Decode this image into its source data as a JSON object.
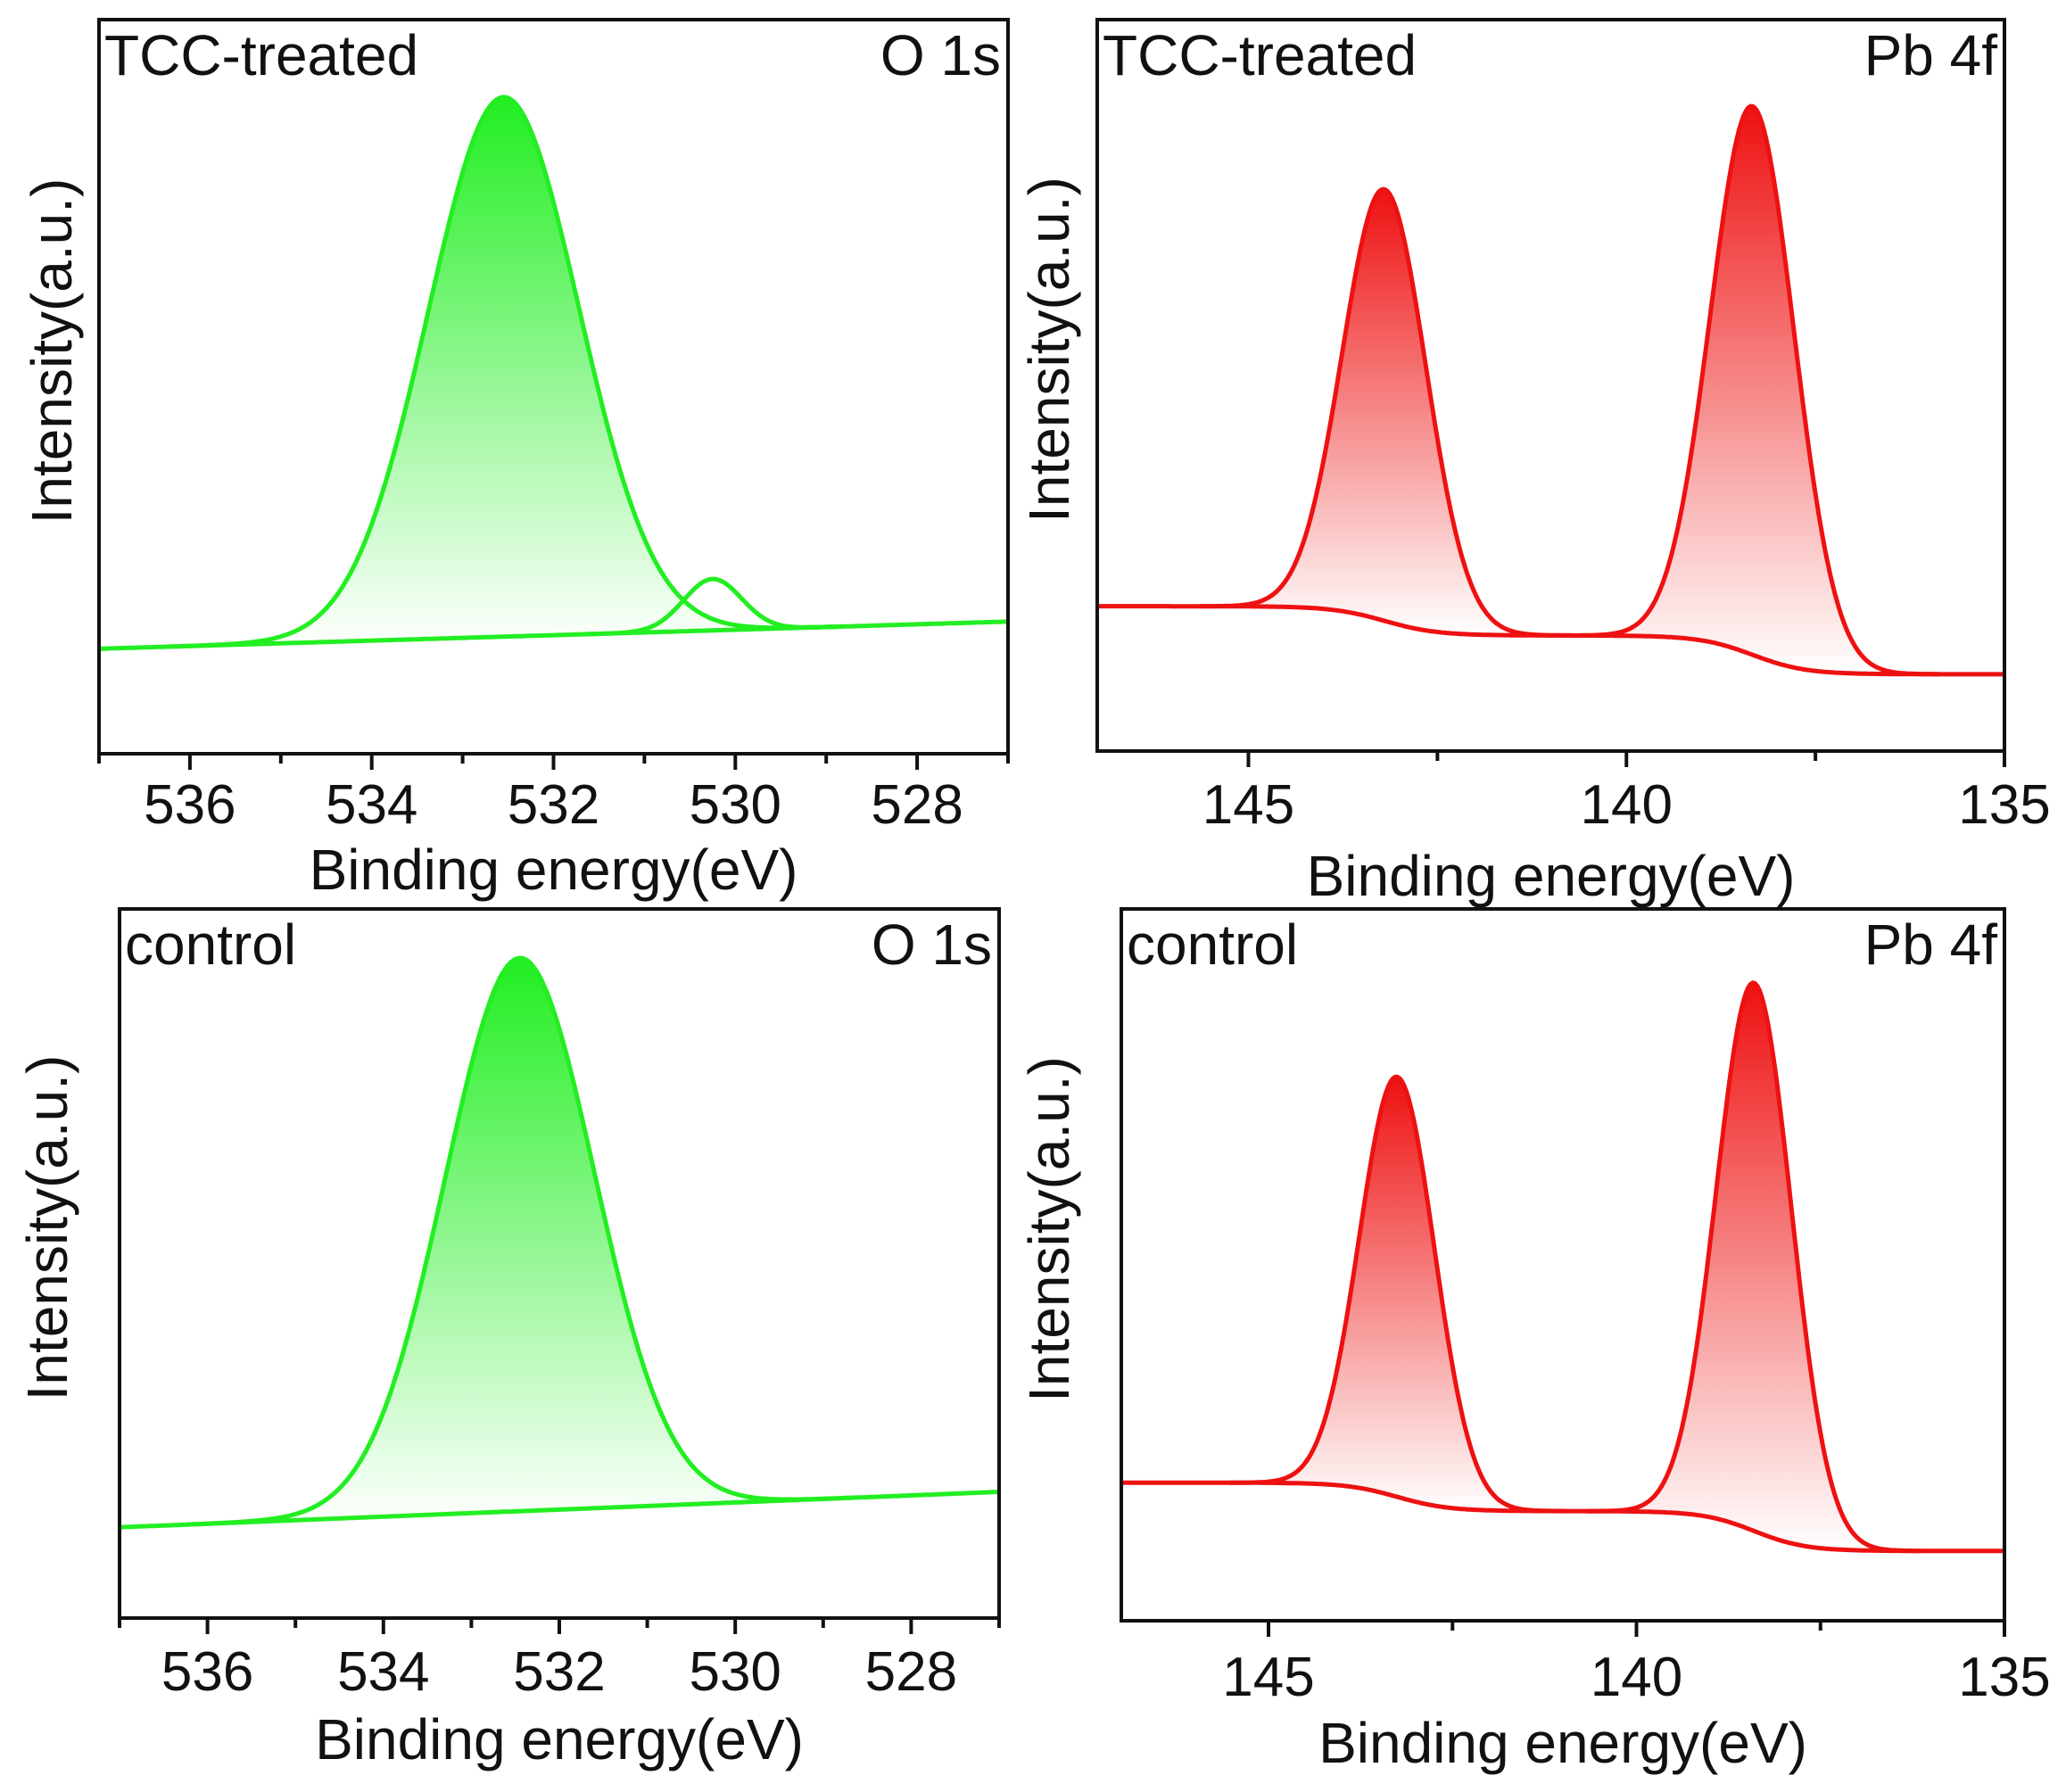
{
  "chart_data": [
    {
      "type": "line",
      "id": "o1s-treated",
      "sample_label": "TCC-treated",
      "element_label": "O 1s",
      "xlabel": "Binding energy(eV)",
      "ylabel": "Intensity(a.u.)",
      "xlim": [
        537,
        527
      ],
      "ylim": [
        0,
        1
      ],
      "xticks": [
        536,
        534,
        532,
        530,
        528
      ],
      "minor_xticks": [
        537,
        535,
        533,
        531,
        529,
        527
      ],
      "color": "#22ee22",
      "background": {
        "type": "linear",
        "start": [
          537,
          0.143
        ],
        "end": [
          527,
          0.18
        ]
      },
      "peaks": [
        {
          "center": 532.55,
          "height": 0.735,
          "fwhm": 1.95,
          "filled": true
        },
        {
          "center": 530.25,
          "height": 0.07,
          "fwhm": 0.75,
          "filled": false
        }
      ]
    },
    {
      "type": "line",
      "id": "pb4f-treated",
      "sample_label": "TCC-treated",
      "element_label": "Pb 4f",
      "xlabel": "Binding energy(eV)",
      "ylabel": "Intensity(a.u.)",
      "xlim": [
        147,
        135
      ],
      "ylim": [
        0,
        1
      ],
      "xticks": [
        145,
        140,
        135
      ],
      "minor_xticks": [
        147.5,
        142.5,
        137.5
      ],
      "color": "#ee1111",
      "background": {
        "type": "shirley",
        "left": 0.198,
        "middle": 0.158,
        "right": 0.105
      },
      "peaks": [
        {
          "center": 143.2,
          "height": 0.59,
          "fwhm": 1.3,
          "filled": true
        },
        {
          "center": 138.33,
          "height": 0.75,
          "fwhm": 1.3,
          "filled": true
        }
      ]
    },
    {
      "type": "line",
      "id": "o1s-control",
      "sample_label": "control",
      "element_label": "O 1s",
      "xlabel": "Binding energy(eV)",
      "ylabel": "Intensity(a.u.)",
      "xlim": [
        537,
        527
      ],
      "ylim": [
        0,
        1
      ],
      "xticks": [
        536,
        534,
        532,
        530,
        528
      ],
      "minor_xticks": [
        537,
        535,
        533,
        531,
        529,
        527
      ],
      "color": "#22ee22",
      "background": {
        "type": "linear",
        "start": [
          537,
          0.128
        ],
        "end": [
          527,
          0.178
        ]
      },
      "peaks": [
        {
          "center": 532.45,
          "height": 0.78,
          "fwhm": 2.0,
          "filled": true
        }
      ]
    },
    {
      "type": "line",
      "id": "pb4f-control",
      "sample_label": "control",
      "element_label": "Pb 4f",
      "xlabel": "Binding energy(eV)",
      "ylabel": "Intensity(a.u.)",
      "xlim": [
        147,
        135
      ],
      "ylim": [
        0,
        1
      ],
      "xticks": [
        145,
        140,
        135
      ],
      "minor_xticks": [
        147.5,
        142.5,
        137.5
      ],
      "color": "#ee1111",
      "background": {
        "type": "shirley",
        "left": 0.194,
        "middle": 0.154,
        "right": 0.098
      },
      "peaks": [
        {
          "center": 143.25,
          "height": 0.59,
          "fwhm": 1.2,
          "filled": true
        },
        {
          "center": 138.4,
          "height": 0.77,
          "fwhm": 1.2,
          "filled": true
        }
      ]
    }
  ]
}
